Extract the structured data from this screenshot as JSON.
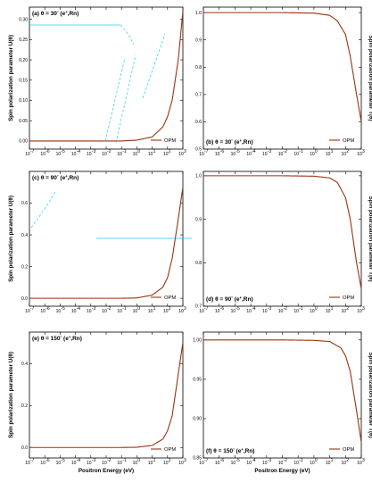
{
  "figure": {
    "x_axis_label": "Positron Energy (eV)",
    "legend_label": "OPM",
    "curve_color": "#993311",
    "artifact_color": "#00c0f0",
    "x_tick_labels": [
      "10",
      "10",
      "10",
      "10",
      "10",
      "10",
      "10",
      "10",
      "10",
      "10",
      "10"
    ],
    "x_tick_exponents": [
      "-7",
      "-6",
      "-5",
      "-4",
      "-3",
      "-2",
      "-1",
      "0",
      "1",
      "2",
      "3"
    ]
  },
  "chart_data": [
    {
      "type": "line",
      "panel_label": "(a) θ = 30° (e+,Rn)",
      "ylabel": "Spin polarization parameter U(θ)",
      "ylabel_side": "left",
      "xscale": "log",
      "xlim": [
        1e-07,
        1000
      ],
      "ylim": [
        -0.02,
        0.33
      ],
      "y_tick_labels": [
        "0.00",
        "0.05",
        "0.10",
        "0.15",
        "0.20",
        "0.25",
        "0.30"
      ],
      "legend": "bottom-right",
      "series": [
        {
          "name": "OPM",
          "x": [
            1e-07,
            0.001,
            0.1,
            1,
            10,
            50,
            100,
            200,
            500,
            1000
          ],
          "y": [
            0.0,
            0.0,
            0.0,
            0.002,
            0.01,
            0.035,
            0.06,
            0.1,
            0.2,
            0.32
          ]
        }
      ]
    },
    {
      "type": "line",
      "panel_label": "(b) θ = 30° (e+,Rn)",
      "ylabel": "Spin polarization parameter T(θ)",
      "ylabel_side": "right",
      "xscale": "log",
      "xlim": [
        1e-07,
        1000
      ],
      "ylim": [
        0.5,
        1.02
      ],
      "y_tick_labels": [
        "0.5",
        "0.6",
        "0.7",
        "0.8",
        "0.9",
        "1.0"
      ],
      "legend": "bottom-right",
      "series": [
        {
          "name": "OPM",
          "x": [
            1e-07,
            0.01,
            1,
            10,
            30,
            100,
            200,
            500,
            1000
          ],
          "y": [
            1.0,
            1.0,
            0.998,
            0.99,
            0.97,
            0.92,
            0.84,
            0.7,
            0.6
          ]
        }
      ]
    },
    {
      "type": "line",
      "panel_label": "(c) θ = 90° (e+,Rn)",
      "ylabel": "Spin polarization parameter U(θ)",
      "ylabel_side": "left",
      "xscale": "log",
      "xlim": [
        1e-07,
        1000
      ],
      "ylim": [
        -0.05,
        0.8
      ],
      "y_tick_labels": [
        "0.0",
        "0.2",
        "0.4",
        "0.6"
      ],
      "legend": "bottom-right",
      "series": [
        {
          "name": "OPM",
          "x": [
            1e-07,
            0.1,
            1,
            10,
            50,
            100,
            200,
            500,
            1000
          ],
          "y": [
            0.0,
            0.0,
            0.002,
            0.02,
            0.07,
            0.13,
            0.25,
            0.5,
            0.7
          ]
        }
      ]
    },
    {
      "type": "line",
      "panel_label": "(d) θ = 90° (e+,Rn)",
      "ylabel": "Spin polarization parameter T(θ)",
      "ylabel_side": "right",
      "xscale": "log",
      "xlim": [
        1e-07,
        1000
      ],
      "ylim": [
        0.7,
        1.01
      ],
      "y_tick_labels": [
        "0.7",
        "0.8",
        "0.9",
        "1.0"
      ],
      "legend": "bottom-right",
      "series": [
        {
          "name": "OPM",
          "x": [
            1e-07,
            0.01,
            1,
            10,
            30,
            100,
            200,
            500,
            1000
          ],
          "y": [
            1.0,
            1.0,
            0.999,
            0.995,
            0.985,
            0.95,
            0.9,
            0.8,
            0.74
          ]
        }
      ]
    },
    {
      "type": "line",
      "panel_label": "(e) θ = 150° (e+,Rn)",
      "ylabel": "Spin polarization parameter U(θ)",
      "ylabel_side": "left",
      "xscale": "log",
      "xlim": [
        1e-07,
        1000
      ],
      "ylim": [
        -0.05,
        0.55
      ],
      "y_tick_labels": [
        "0.0",
        "0.2",
        "0.4"
      ],
      "legend": "bottom-right",
      "series": [
        {
          "name": "OPM",
          "x": [
            1e-07,
            0.1,
            1,
            10,
            50,
            100,
            200,
            500,
            1000
          ],
          "y": [
            0.0,
            0.0,
            0.001,
            0.01,
            0.04,
            0.08,
            0.15,
            0.35,
            0.5
          ]
        }
      ]
    },
    {
      "type": "line",
      "panel_label": "(f) θ = 150° (e+,Rn)",
      "ylabel": "Spin polarization parameter T(θ)",
      "ylabel_side": "right",
      "xscale": "log",
      "xlim": [
        1e-07,
        1000
      ],
      "ylim": [
        0.85,
        1.01
      ],
      "y_tick_labels": [
        "0.85",
        "0.90",
        "0.95",
        "1.00"
      ],
      "legend": "bottom-right",
      "series": [
        {
          "name": "OPM",
          "x": [
            1e-07,
            0.01,
            1,
            10,
            50,
            100,
            200,
            500,
            1000
          ],
          "y": [
            1.0,
            1.0,
            0.9995,
            0.998,
            0.99,
            0.98,
            0.96,
            0.91,
            0.87
          ]
        }
      ]
    }
  ]
}
